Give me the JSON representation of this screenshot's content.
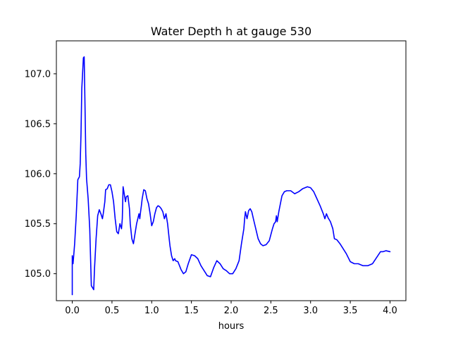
{
  "chart_data": {
    "type": "line",
    "title": "Water Depth h at gauge 530",
    "xlabel": "hours",
    "ylabel": "",
    "xlim": [
      -0.2,
      4.2
    ],
    "ylim": [
      104.73,
      107.33
    ],
    "xticks": [
      0.0,
      0.5,
      1.0,
      1.5,
      2.0,
      2.5,
      3.0,
      3.5,
      4.0
    ],
    "xtick_labels": [
      "0.0",
      "0.5",
      "1.0",
      "1.5",
      "2.0",
      "2.5",
      "3.0",
      "3.5",
      "4.0"
    ],
    "yticks": [
      105.0,
      105.5,
      106.0,
      106.5,
      107.0
    ],
    "ytick_labels": [
      "105.0",
      "105.5",
      "106.0",
      "106.5",
      "107.0"
    ],
    "grid": false,
    "legend": "none",
    "series": [
      {
        "color": "#0000ff",
        "x": [
          0.0,
          0.0,
          0.01,
          0.02,
          0.03,
          0.05,
          0.07,
          0.09,
          0.1,
          0.11,
          0.12,
          0.14,
          0.15,
          0.16,
          0.17,
          0.18,
          0.2,
          0.22,
          0.24,
          0.27,
          0.28,
          0.3,
          0.32,
          0.34,
          0.36,
          0.38,
          0.39,
          0.41,
          0.42,
          0.44,
          0.46,
          0.48,
          0.5,
          0.52,
          0.54,
          0.56,
          0.58,
          0.6,
          0.62,
          0.63,
          0.64,
          0.65,
          0.67,
          0.68,
          0.7,
          0.72,
          0.73,
          0.75,
          0.77,
          0.79,
          0.81,
          0.84,
          0.85,
          0.86,
          0.87,
          0.88,
          0.9,
          0.92,
          0.94,
          0.96,
          0.98,
          1.0,
          1.02,
          1.04,
          1.06,
          1.08,
          1.1,
          1.12,
          1.14,
          1.16,
          1.18,
          1.2,
          1.22,
          1.23,
          1.25,
          1.27,
          1.29,
          1.3,
          1.33,
          1.35,
          1.37,
          1.4,
          1.43,
          1.46,
          1.5,
          1.54,
          1.58,
          1.62,
          1.66,
          1.7,
          1.74,
          1.78,
          1.82,
          1.86,
          1.9,
          1.94,
          1.98,
          2.02,
          2.06,
          2.1,
          2.13,
          2.16,
          2.17,
          2.18,
          2.2,
          2.22,
          2.24,
          2.26,
          2.28,
          2.31,
          2.34,
          2.37,
          2.4,
          2.44,
          2.48,
          2.52,
          2.54,
          2.56,
          2.57,
          2.58,
          2.6,
          2.62,
          2.64,
          2.67,
          2.7,
          2.75,
          2.8,
          2.85,
          2.9,
          2.93,
          2.96,
          3.0,
          3.04,
          3.08,
          3.12,
          3.16,
          3.18,
          3.2,
          3.22,
          3.25,
          3.28,
          3.3,
          3.33,
          3.37,
          3.41,
          3.45,
          3.5,
          3.55,
          3.6,
          3.66,
          3.72,
          3.78,
          3.83,
          3.88,
          3.91,
          3.95,
          4.0
        ],
        "y": [
          104.79,
          105.18,
          105.1,
          105.2,
          105.3,
          105.58,
          105.94,
          105.97,
          106.1,
          106.4,
          106.85,
          107.16,
          107.17,
          106.7,
          106.2,
          105.95,
          105.75,
          105.45,
          104.88,
          104.84,
          105.05,
          105.35,
          105.58,
          105.64,
          105.6,
          105.55,
          105.6,
          105.72,
          105.84,
          105.85,
          105.89,
          105.89,
          105.82,
          105.72,
          105.55,
          105.42,
          105.4,
          105.5,
          105.45,
          105.55,
          105.87,
          105.82,
          105.72,
          105.77,
          105.78,
          105.65,
          105.5,
          105.35,
          105.3,
          105.4,
          105.5,
          105.6,
          105.55,
          105.62,
          105.68,
          105.75,
          105.84,
          105.83,
          105.75,
          105.7,
          105.6,
          105.48,
          105.52,
          105.6,
          105.66,
          105.68,
          105.67,
          105.65,
          105.62,
          105.55,
          105.6,
          105.5,
          105.35,
          105.28,
          105.18,
          105.13,
          105.15,
          105.13,
          105.12,
          105.08,
          105.04,
          105.0,
          105.02,
          105.1,
          105.19,
          105.18,
          105.15,
          105.08,
          105.03,
          104.98,
          104.97,
          105.06,
          105.13,
          105.1,
          105.05,
          105.03,
          105.0,
          105.0,
          105.05,
          105.13,
          105.3,
          105.45,
          105.55,
          105.62,
          105.55,
          105.63,
          105.65,
          105.62,
          105.55,
          105.45,
          105.35,
          105.3,
          105.28,
          105.29,
          105.33,
          105.45,
          105.5,
          105.52,
          105.58,
          105.52,
          105.62,
          105.7,
          105.78,
          105.82,
          105.83,
          105.83,
          105.8,
          105.82,
          105.85,
          105.86,
          105.87,
          105.86,
          105.82,
          105.75,
          105.68,
          105.6,
          105.55,
          105.6,
          105.56,
          105.52,
          105.45,
          105.35,
          105.34,
          105.3,
          105.25,
          105.2,
          105.12,
          105.1,
          105.1,
          105.08,
          105.08,
          105.1,
          105.16,
          105.22,
          105.22,
          105.23,
          105.22
        ]
      }
    ]
  }
}
